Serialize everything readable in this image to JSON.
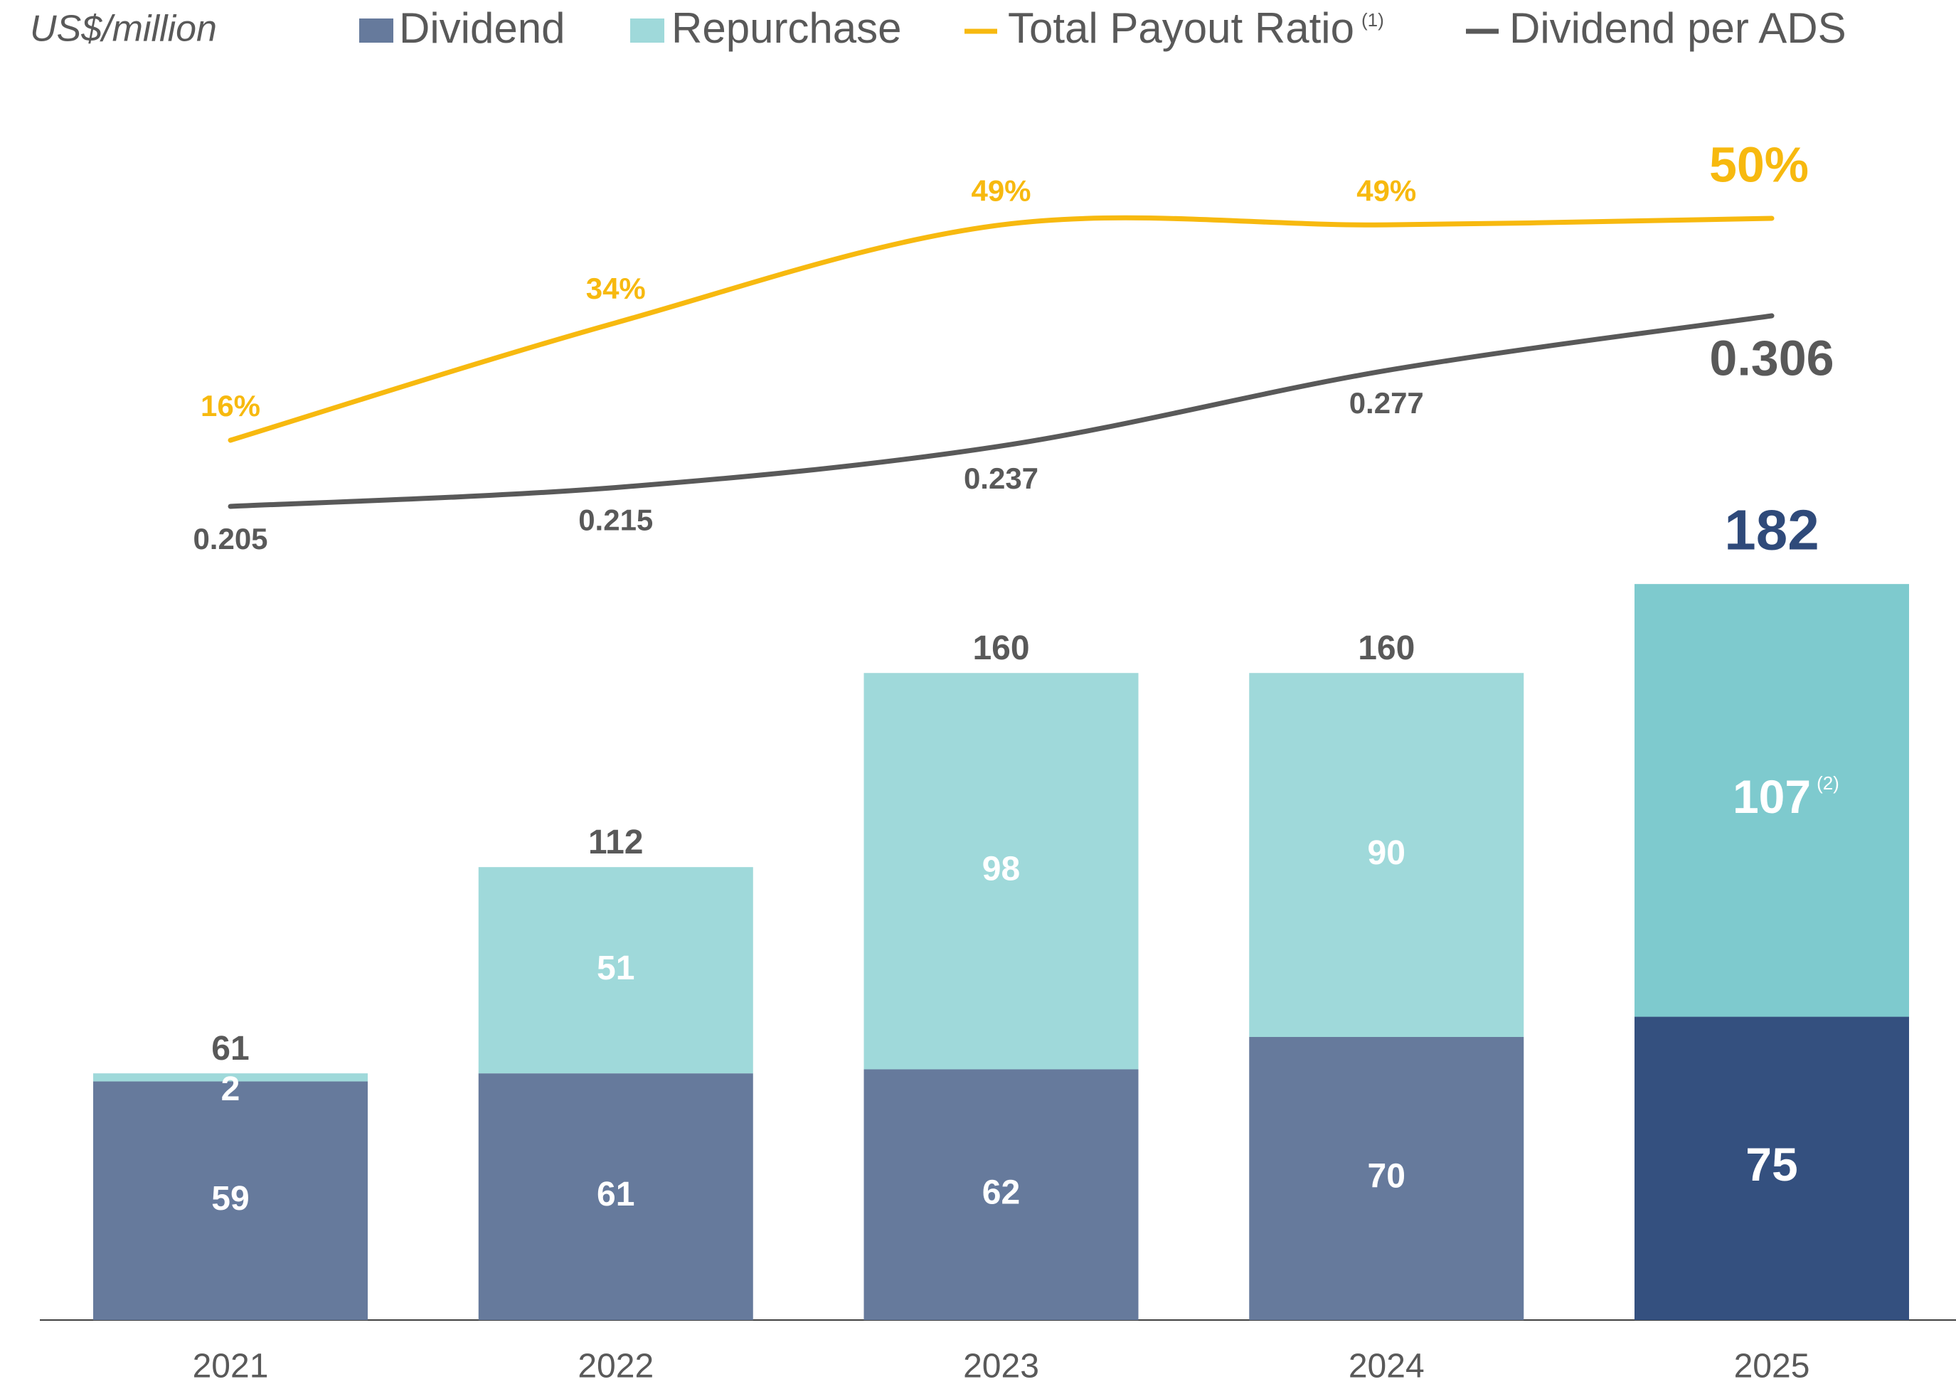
{
  "chart_data": {
    "type": "bar",
    "unit_label": "US$/million",
    "categories": [
      "2021",
      "2022",
      "2023",
      "2024",
      "2025"
    ],
    "series": [
      {
        "name": "Dividend",
        "type": "bar",
        "colors": [
          "#667a9c",
          "#667a9c",
          "#667a9c",
          "#667a9c",
          "#34507f"
        ],
        "values": [
          59,
          61,
          62,
          70,
          75
        ]
      },
      {
        "name": "Repurchase",
        "type": "bar",
        "colors": [
          "#9fd9da",
          "#9fd9da",
          "#9fd9da",
          "#9fd9da",
          "#7ecace"
        ],
        "values": [
          2,
          51,
          98,
          90,
          107
        ],
        "value_notes": [
          null,
          null,
          null,
          null,
          "(2)"
        ]
      },
      {
        "name": "Total Payout Ratio",
        "note": "(1)",
        "type": "line",
        "color": "#f7b90f",
        "values": [
          16,
          34,
          49,
          49,
          50
        ],
        "value_labels": [
          "16%",
          "34%",
          "49%",
          "49%",
          "50%"
        ]
      },
      {
        "name": "Dividend per ADS",
        "type": "line",
        "color": "#595959",
        "values": [
          0.205,
          0.215,
          0.237,
          0.277,
          0.306
        ]
      }
    ],
    "totals": [
      61,
      112,
      160,
      160,
      182
    ]
  }
}
